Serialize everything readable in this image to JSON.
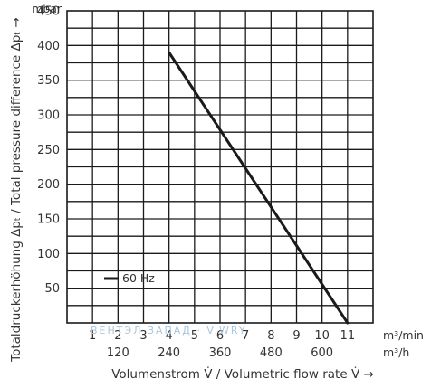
{
  "chart_data": {
    "type": "line",
    "ylabel": "Totaldruckerhöhung Δpₜ / Total pressure difference Δpₜ →",
    "y_unit": "mbar",
    "xlabel": "Volumenstrom V̇ / Volumetric flow rate V̇ →",
    "x_unit": "m³/min",
    "x2_unit": "m³/h",
    "xlim": [
      0,
      12
    ],
    "ylim": [
      0,
      450
    ],
    "x_ticks": [
      1,
      2,
      3,
      4,
      5,
      6,
      7,
      8,
      9,
      10,
      11
    ],
    "x2_ticks": [
      {
        "x": 2,
        "label": "120"
      },
      {
        "x": 4,
        "label": "240"
      },
      {
        "x": 6,
        "label": "360"
      },
      {
        "x": 8,
        "label": "480"
      },
      {
        "x": 10,
        "label": "600"
      }
    ],
    "y_ticks": [
      50,
      100,
      150,
      200,
      250,
      300,
      350,
      400,
      450
    ],
    "grid": true,
    "legend_position": "bottom-left",
    "series": [
      {
        "name": "60 Hz",
        "color": "#1a1a1a",
        "x": [
          4.0,
          11.0
        ],
        "y": [
          390,
          0
        ]
      }
    ],
    "watermark": "ВЕНТЭЛ ЗАПАД · V.WRY"
  }
}
